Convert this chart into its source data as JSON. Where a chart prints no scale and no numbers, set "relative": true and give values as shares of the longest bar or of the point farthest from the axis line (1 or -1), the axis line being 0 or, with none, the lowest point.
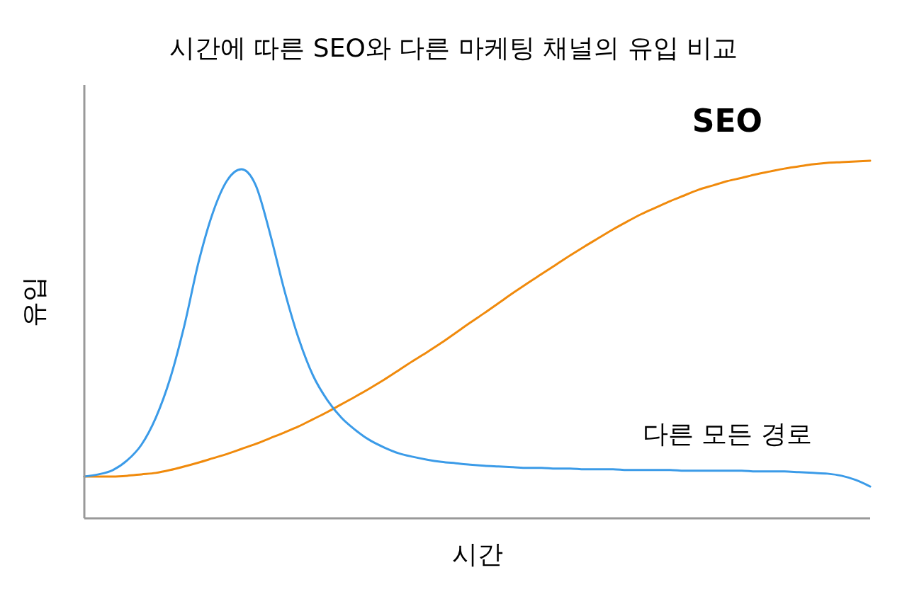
{
  "chart_data": {
    "type": "line",
    "title": "시간에 따른 SEO와 다른 마케팅 채널의 유입 비교",
    "xlabel": "시간",
    "ylabel": "유입",
    "relative": true,
    "categories": [
      null,
      null,
      null,
      null,
      null,
      null,
      null,
      null,
      null,
      null,
      null,
      null,
      null,
      null,
      null,
      null,
      null,
      null,
      null,
      null,
      null,
      null,
      null,
      null,
      null,
      null,
      null,
      null,
      null,
      null,
      null,
      null,
      null,
      null,
      null,
      null,
      null,
      null,
      null,
      null,
      null,
      null,
      null,
      null,
      null,
      null,
      null,
      null,
      null,
      null,
      null,
      null,
      null,
      null,
      null,
      null
    ],
    "series": [
      {
        "name": "SEO",
        "color": "#f08a0c",
        "values": [
          0.117,
          0.117,
          0.117,
          0.119,
          0.123,
          0.127,
          0.135,
          0.145,
          0.156,
          0.168,
          0.18,
          0.194,
          0.208,
          0.224,
          0.24,
          0.257,
          0.277,
          0.297,
          0.319,
          0.341,
          0.364,
          0.388,
          0.414,
          0.44,
          0.465,
          0.491,
          0.519,
          0.547,
          0.574,
          0.602,
          0.63,
          0.657,
          0.683,
          0.709,
          0.735,
          0.76,
          0.784,
          0.808,
          0.83,
          0.851,
          0.869,
          0.887,
          0.903,
          0.919,
          0.931,
          0.943,
          0.952,
          0.962,
          0.97,
          0.978,
          0.984,
          0.99,
          0.994,
          0.996,
          0.998,
          1
        ]
      },
      {
        "name": "다른 모든 경로",
        "color": "#3b9be8",
        "values": [
          0.117,
          0.123,
          0.135,
          0.162,
          0.206,
          0.281,
          0.39,
          0.539,
          0.717,
          0.855,
          0.945,
          0.976,
          0.931,
          0.796,
          0.638,
          0.503,
          0.4,
          0.331,
          0.281,
          0.246,
          0.218,
          0.198,
          0.182,
          0.172,
          0.164,
          0.158,
          0.154,
          0.15,
          0.147,
          0.145,
          0.143,
          0.141,
          0.141,
          0.139,
          0.139,
          0.137,
          0.137,
          0.137,
          0.135,
          0.135,
          0.135,
          0.135,
          0.133,
          0.133,
          0.133,
          0.133,
          0.133,
          0.131,
          0.131,
          0.131,
          0.129,
          0.127,
          0.125,
          0.119,
          0.107,
          0.089
        ]
      }
    ]
  }
}
